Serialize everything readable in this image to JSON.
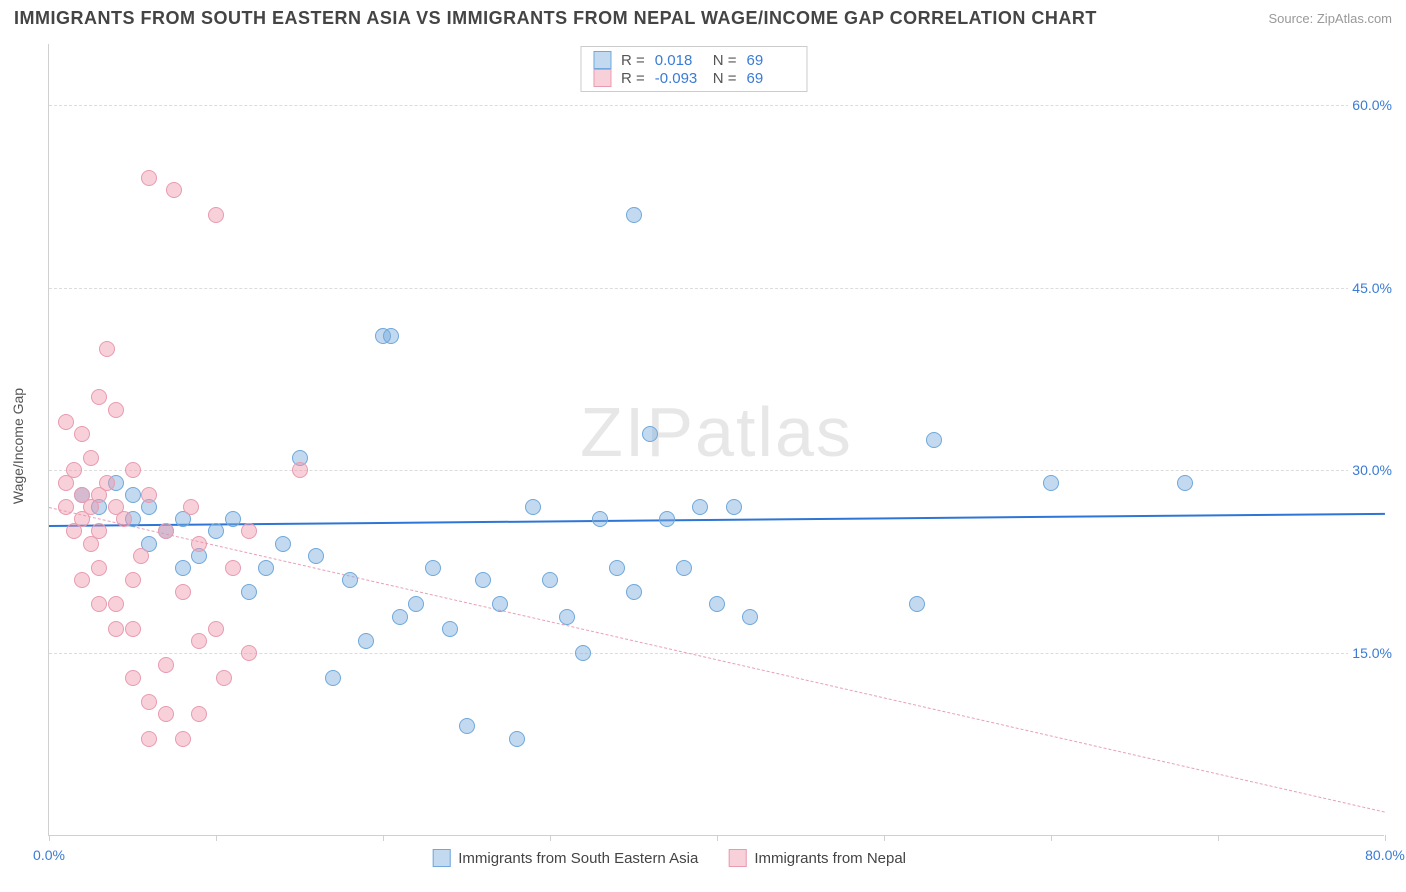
{
  "title": "IMMIGRANTS FROM SOUTH EASTERN ASIA VS IMMIGRANTS FROM NEPAL WAGE/INCOME GAP CORRELATION CHART",
  "source": "Source: ZipAtlas.com",
  "watermark": "ZIPatlas",
  "chart": {
    "type": "scatter",
    "y_axis_label": "Wage/Income Gap",
    "xlim": [
      0,
      80
    ],
    "ylim": [
      0,
      65
    ],
    "x_ticks": [
      0,
      10,
      20,
      30,
      40,
      50,
      60,
      70,
      80
    ],
    "x_tick_labels": {
      "0": "0.0%",
      "80": "80.0%"
    },
    "y_gridlines": [
      15,
      30,
      45,
      60
    ],
    "y_tick_labels": {
      "15": "15.0%",
      "30": "30.0%",
      "45": "45.0%",
      "60": "60.0%"
    },
    "background_color": "#ffffff",
    "grid_color": "#dcdcdc",
    "axis_color": "#d0d0d0",
    "tick_label_color": "#3a7bd5"
  },
  "series": [
    {
      "name": "Immigrants from South Eastern Asia",
      "color_fill": "rgba(120,170,220,0.45)",
      "color_stroke": "#6fa8dc",
      "r_value": "0.018",
      "n_value": "69",
      "trend": {
        "x1": 0,
        "y1": 25.5,
        "x2": 80,
        "y2": 26.5,
        "color": "#2e75d6",
        "width": 2,
        "dashed": false
      },
      "points": [
        [
          2,
          28
        ],
        [
          3,
          27
        ],
        [
          4,
          29
        ],
        [
          5,
          26
        ],
        [
          5,
          28
        ],
        [
          6,
          27
        ],
        [
          6,
          24
        ],
        [
          7,
          25
        ],
        [
          8,
          26
        ],
        [
          8,
          22
        ],
        [
          9,
          23
        ],
        [
          10,
          25
        ],
        [
          11,
          26
        ],
        [
          12,
          20
        ],
        [
          13,
          22
        ],
        [
          14,
          24
        ],
        [
          15,
          31
        ],
        [
          16,
          23
        ],
        [
          17,
          13
        ],
        [
          18,
          21
        ],
        [
          19,
          16
        ],
        [
          20,
          41
        ],
        [
          20.5,
          41
        ],
        [
          21,
          18
        ],
        [
          22,
          19
        ],
        [
          23,
          22
        ],
        [
          24,
          17
        ],
        [
          25,
          9
        ],
        [
          26,
          21
        ],
        [
          27,
          19
        ],
        [
          28,
          8
        ],
        [
          29,
          27
        ],
        [
          30,
          21
        ],
        [
          31,
          18
        ],
        [
          32,
          15
        ],
        [
          33,
          26
        ],
        [
          34,
          22
        ],
        [
          35,
          20
        ],
        [
          36,
          33
        ],
        [
          37,
          26
        ],
        [
          38,
          22
        ],
        [
          39,
          27
        ],
        [
          35,
          51
        ],
        [
          40,
          19
        ],
        [
          41,
          27
        ],
        [
          42,
          18
        ],
        [
          52,
          19
        ],
        [
          53,
          32.5
        ],
        [
          60,
          29
        ],
        [
          68,
          29
        ]
      ]
    },
    {
      "name": "Immigrants from Nepal",
      "color_fill": "rgba(240,150,170,0.45)",
      "color_stroke": "#e89bb0",
      "r_value": "-0.093",
      "n_value": "69",
      "trend": {
        "x1": 0,
        "y1": 27,
        "x2": 80,
        "y2": 2,
        "color": "#e8a0b5",
        "width": 1,
        "dashed": true
      },
      "points": [
        [
          1,
          27
        ],
        [
          1,
          29
        ],
        [
          1.5,
          30
        ],
        [
          2,
          26
        ],
        [
          2,
          28
        ],
        [
          2.5,
          24
        ],
        [
          2.5,
          31
        ],
        [
          3,
          25
        ],
        [
          3,
          28
        ],
        [
          3,
          22
        ],
        [
          3.5,
          40
        ],
        [
          4,
          27
        ],
        [
          4,
          19
        ],
        [
          4.5,
          26
        ],
        [
          5,
          30
        ],
        [
          5,
          17
        ],
        [
          5,
          13
        ],
        [
          5.5,
          23
        ],
        [
          6,
          8
        ],
        [
          6,
          28
        ],
        [
          6,
          54
        ],
        [
          7,
          25
        ],
        [
          7,
          14
        ],
        [
          7.5,
          53
        ],
        [
          8,
          20
        ],
        [
          8.5,
          27
        ],
        [
          9,
          24
        ],
        [
          9,
          10
        ],
        [
          9,
          16
        ],
        [
          10,
          51
        ],
        [
          10,
          17
        ],
        [
          10.5,
          13
        ],
        [
          11,
          22
        ],
        [
          12,
          25
        ],
        [
          12,
          15
        ],
        [
          15,
          30
        ],
        [
          1,
          34
        ],
        [
          2,
          33
        ],
        [
          3,
          36
        ],
        [
          4,
          35
        ],
        [
          2,
          21
        ],
        [
          3,
          19
        ],
        [
          4,
          17
        ],
        [
          5,
          21
        ],
        [
          6,
          11
        ],
        [
          7,
          10
        ],
        [
          8,
          8
        ],
        [
          1.5,
          25
        ],
        [
          2.5,
          27
        ],
        [
          3.5,
          29
        ]
      ]
    }
  ],
  "legend": {
    "stats_label_r": "R =",
    "stats_label_n": "N ="
  }
}
